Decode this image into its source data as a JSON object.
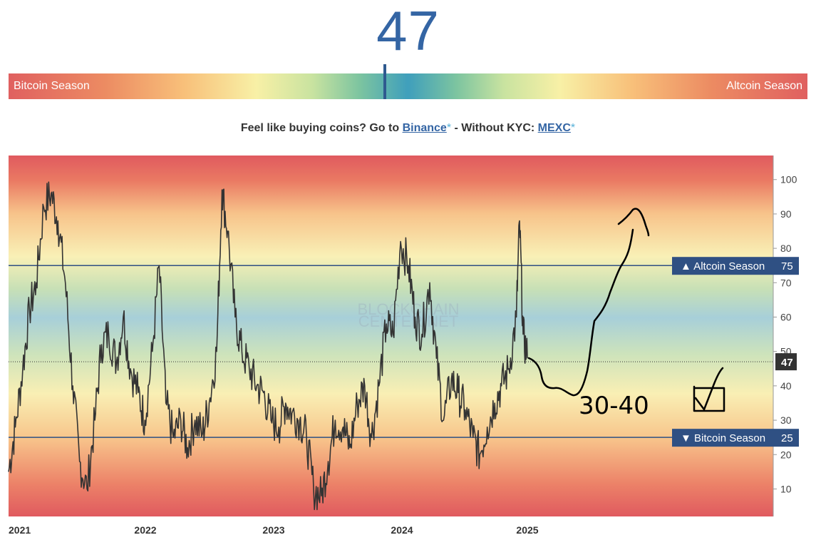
{
  "header": {
    "index_value": "47"
  },
  "gauge": {
    "left_label": "Bitcoin Season",
    "right_label": "Altcoin Season",
    "value": 47
  },
  "promo": {
    "prefix": "Feel like buying coins? Go to",
    "link1": "Binance",
    "star": "*",
    "middle": " - Without KYC: ",
    "link2": "MEXC"
  },
  "chart_data": {
    "type": "line",
    "title": "",
    "xlabel": "",
    "ylabel": "",
    "x_tick_labels": [
      "2021",
      "2022",
      "2023",
      "2024",
      "2025"
    ],
    "y_ticks": [
      10,
      20,
      30,
      40,
      50,
      60,
      70,
      80,
      90,
      100
    ],
    "ylim": [
      2,
      107
    ],
    "grid": false,
    "watermark": "BLOCKCHAIN CENTER.NET",
    "thresholds": [
      {
        "label": "▲ Altcoin Season",
        "value": 75
      },
      {
        "label": "▼ Bitcoin Season",
        "value": 25
      }
    ],
    "current": {
      "label": "47",
      "value": 47
    },
    "series": [
      {
        "x": [
          "2021-01-01",
          "2021-01-20",
          "2021-02-10",
          "2021-03-01",
          "2021-03-20",
          "2021-04-10",
          "2021-05-01",
          "2021-05-20",
          "2021-06-10",
          "2021-07-01",
          "2021-07-20",
          "2021-08-10",
          "2021-09-01",
          "2021-09-20",
          "2021-10-10",
          "2021-11-01",
          "2021-11-20",
          "2021-12-10",
          "2022-01-01",
          "2022-01-20",
          "2022-02-10",
          "2022-03-01",
          "2022-03-20",
          "2022-04-10",
          "2022-05-01",
          "2022-05-20",
          "2022-06-10",
          "2022-07-01",
          "2022-07-20",
          "2022-08-10",
          "2022-08-25",
          "2022-09-10",
          "2022-10-01",
          "2022-10-20",
          "2022-11-10",
          "2022-12-01",
          "2022-12-20",
          "2023-01-10",
          "2023-02-01",
          "2023-02-20",
          "2023-03-10",
          "2023-04-01",
          "2023-04-20",
          "2023-05-10",
          "2023-06-01",
          "2023-06-20",
          "2023-07-10",
          "2023-08-01",
          "2023-08-20",
          "2023-09-10",
          "2023-10-01",
          "2023-10-20",
          "2023-11-10",
          "2023-12-01",
          "2023-12-20",
          "2024-01-10",
          "2024-02-01",
          "2024-02-20",
          "2024-03-10",
          "2024-04-01",
          "2024-04-20",
          "2024-05-10",
          "2024-06-01",
          "2024-06-20",
          "2024-07-10",
          "2024-08-01",
          "2024-08-20",
          "2024-09-10",
          "2024-10-01",
          "2024-10-20",
          "2024-11-10",
          "2024-12-01",
          "2024-12-10",
          "2024-12-20",
          "2025-01-01"
        ],
        "y": [
          15,
          28,
          45,
          62,
          70,
          92,
          96,
          88,
          70,
          40,
          18,
          10,
          30,
          52,
          55,
          47,
          60,
          45,
          38,
          30,
          50,
          75,
          35,
          25,
          30,
          22,
          30,
          26,
          35,
          50,
          97,
          85,
          60,
          50,
          45,
          40,
          38,
          30,
          28,
          35,
          32,
          30,
          25,
          10,
          8,
          18,
          30,
          28,
          22,
          35,
          40,
          25,
          40,
          58,
          55,
          82,
          75,
          60,
          55,
          70,
          48,
          30,
          42,
          38,
          33,
          25,
          20,
          28,
          35,
          40,
          45,
          60,
          88,
          55,
          48
        ]
      }
    ],
    "annotations": [
      "30-40"
    ]
  }
}
